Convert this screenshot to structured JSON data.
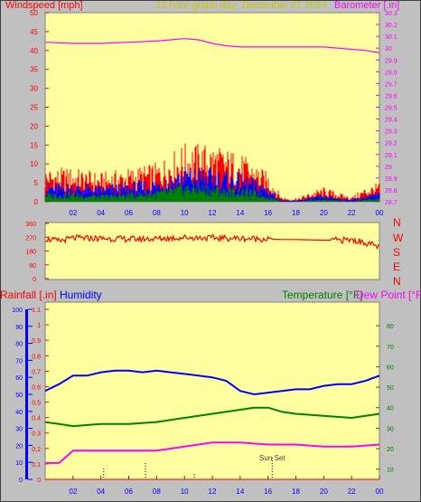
{
  "header": {
    "windspeed_label": "Windspeed [mph]",
    "graph_title": "24 hour graph day",
    "date": "December 07 2024",
    "barometer_label": "Barometer [.in]"
  },
  "mid_header": {
    "rainfall_label": "Rainfall [.in]",
    "humidity_label": "Humidity",
    "temperature_label": "Temperature [°F]",
    "dewpoint_label": "Dew Point [°F]"
  },
  "compass": [
    "N",
    "W",
    "S",
    "E",
    "N"
  ],
  "sunset_label": "Sun Set",
  "colors": {
    "plot_bg": "#ffffa0",
    "page_bg": "#c0c0c0",
    "wind_gust": "#ff0000",
    "wind_avg": "#0000ff",
    "wind_low": "#008000",
    "barometer": "#ff00ff",
    "direction": "#ff0000",
    "humidity": "#0000ff",
    "temperature": "#008000",
    "dewpoint": "#ff00ff",
    "rainfall": "#ff0000",
    "title": "#c8c800"
  },
  "chart_data": [
    {
      "type": "line",
      "title": "24 hour graph day",
      "x_ticks": [
        "02",
        "04",
        "06",
        "08",
        "10",
        "12",
        "14",
        "16",
        "18",
        "20",
        "22",
        "00"
      ],
      "xlim": [
        0,
        24
      ],
      "y_left": {
        "label": "Windspeed [mph]",
        "ylim": [
          0,
          50
        ],
        "ticks": [
          0,
          5,
          10,
          15,
          20,
          25,
          30,
          35,
          40,
          45,
          50
        ]
      },
      "y_right": {
        "label": "Barometer [.in]",
        "ylim": [
          28.7,
          30.3
        ],
        "ticks": [
          "28.7",
          "28.8",
          "28.9",
          "29",
          "29.1",
          "29.2",
          "29.3",
          "29.4",
          "29.5",
          "29.6",
          "29.7",
          "29.8",
          "29.9",
          "30",
          "30.1",
          "30.2",
          "30.3"
        ]
      },
      "series": [
        {
          "name": "Barometer [.in]",
          "axis": "right",
          "x": [
            0,
            2,
            4,
            6,
            8,
            9,
            10,
            11,
            12,
            13,
            14,
            15,
            16,
            18,
            20,
            22,
            23,
            24
          ],
          "values": [
            30.05,
            30.04,
            30.04,
            30.05,
            30.06,
            30.07,
            30.08,
            30.07,
            30.04,
            30.02,
            30.01,
            30.01,
            30.01,
            30.01,
            30.01,
            29.99,
            29.98,
            29.96
          ]
        },
        {
          "axis": "left",
          "x": [
            0,
            2,
            4,
            6,
            8,
            9,
            10,
            11,
            12,
            13,
            14,
            15,
            16,
            17,
            18,
            19,
            20,
            21,
            22,
            23,
            24
          ],
          "values": [
            7,
            7,
            6,
            7,
            8,
            10,
            12,
            12,
            12,
            11,
            10,
            8,
            6,
            1,
            0.5,
            2,
            3,
            2,
            1,
            3,
            4
          ]
        },
        {
          "axis": "left",
          "x": [
            0,
            2,
            4,
            6,
            8,
            9,
            10,
            11,
            12,
            13,
            14,
            15,
            16,
            17,
            18,
            19,
            20,
            21,
            22,
            23,
            24
          ],
          "values": [
            4,
            4,
            3.5,
            4,
            5,
            6,
            7.5,
            7.5,
            7,
            6.5,
            6,
            5,
            3.5,
            0.3,
            0.2,
            1,
            1.5,
            1,
            0.5,
            1.5,
            2
          ]
        },
        {
          "axis": "left",
          "x": [
            0,
            2,
            4,
            6,
            8,
            9,
            10,
            11,
            12,
            13,
            14,
            15,
            16,
            17,
            18,
            19,
            20,
            21,
            22,
            23,
            24
          ],
          "values": [
            2,
            2,
            1.5,
            2,
            2.5,
            3,
            4,
            4,
            3.5,
            3,
            3,
            2.5,
            1.5,
            0,
            0,
            0.3,
            0.5,
            0.3,
            0,
            0.5,
            1
          ]
        }
      ]
    },
    {
      "type": "line",
      "y_ticks": [
        360,
        270,
        180,
        90,
        0
      ],
      "ylim": [
        0,
        360
      ],
      "xlim": [
        0,
        24
      ],
      "series": [
        {
          "x": [
            0,
            1,
            2,
            4,
            6,
            8,
            10,
            12,
            14,
            16,
            17,
            18,
            20,
            22,
            23,
            24
          ],
          "values": [
            260,
            245,
            265,
            262,
            258,
            260,
            268,
            265,
            262,
            258,
            255,
            255,
            250,
            252,
            235,
            205
          ]
        }
      ]
    },
    {
      "type": "line",
      "x_ticks": [
        "02",
        "04",
        "06",
        "08",
        "10",
        "12",
        "14",
        "16",
        "18",
        "20",
        "22",
        "00"
      ],
      "xlim": [
        0,
        24
      ],
      "y_left_humidity": {
        "label": "Humidity",
        "ylim": [
          0,
          100
        ],
        "ticks": [
          0,
          10,
          20,
          30,
          40,
          50,
          60,
          70,
          80,
          90,
          100
        ]
      },
      "y_left_rain": {
        "label": "Rainfall [.in]",
        "ylim": [
          0,
          1.1
        ],
        "ticks": [
          "0",
          "0.1",
          "0.2",
          "0.3",
          "0.4",
          "0.5",
          "0.6",
          "0.7",
          "0.8",
          "0.9",
          "1",
          "1.1"
        ]
      },
      "y_right": {
        "label": "Temperature [°F]",
        "ylim": [
          5,
          88
        ],
        "ticks": [
          10,
          20,
          30,
          40,
          50,
          60,
          70,
          80
        ]
      },
      "series": [
        {
          "name": "Humidity",
          "axis": "humidity",
          "x": [
            0,
            1,
            2,
            3,
            4,
            5,
            6,
            7,
            8,
            9,
            10,
            11,
            12,
            13,
            14,
            15,
            16,
            17,
            18,
            19,
            20,
            21,
            22,
            23,
            24
          ],
          "values": [
            52,
            56,
            61,
            61,
            63,
            64,
            64,
            63,
            64,
            63,
            62,
            61,
            60,
            58,
            52,
            50,
            51,
            52,
            53,
            53,
            55,
            56,
            56,
            58,
            61
          ]
        },
        {
          "name": "Temperature [°F]",
          "axis": "right",
          "x": [
            0,
            1,
            2,
            4,
            6,
            8,
            9,
            10,
            11,
            12,
            13,
            14,
            15,
            16,
            17,
            18,
            20,
            22,
            23,
            24
          ],
          "values": [
            33,
            32,
            31,
            32,
            32,
            33,
            34,
            35,
            36,
            37,
            38,
            39,
            40,
            40,
            38,
            37,
            36,
            35,
            36,
            37
          ]
        },
        {
          "name": "Dew Point [°F]",
          "axis": "right",
          "x": [
            0,
            1,
            1.5,
            2,
            4,
            6,
            8,
            9,
            10,
            11,
            12,
            14,
            16,
            18,
            20,
            22,
            24
          ],
          "values": [
            13,
            13,
            16,
            19,
            19,
            19,
            19,
            20,
            21,
            22,
            23,
            23,
            22,
            22,
            21,
            21,
            22
          ]
        },
        {
          "name": "Rainfall [.in]",
          "axis": "rain",
          "x": [
            0,
            24
          ],
          "values": [
            0,
            0
          ]
        }
      ]
    }
  ]
}
